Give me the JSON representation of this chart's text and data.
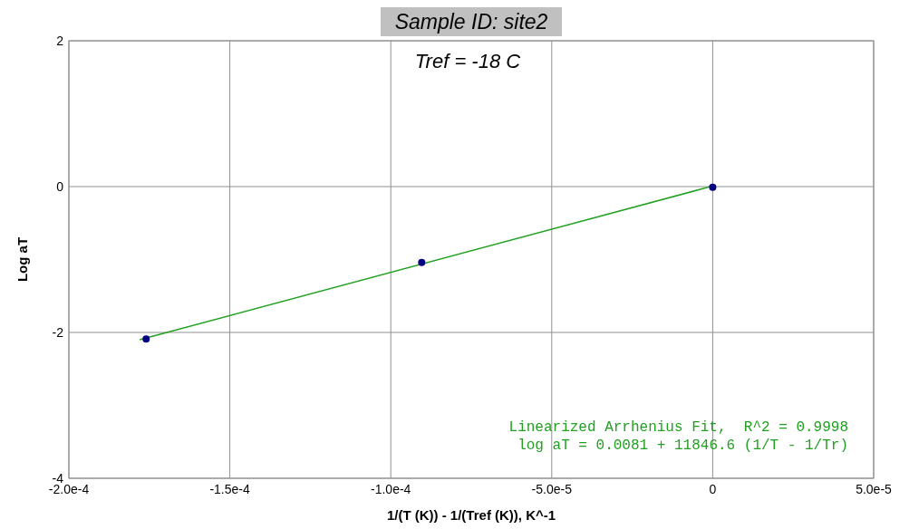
{
  "chart_data": {
    "type": "scatter",
    "title": "Sample ID: site2",
    "subtitle": "Tref = -18 C",
    "xlabel": "1/(T (K)) - 1/(Tref (K)), K^-1",
    "ylabel": "Log aT",
    "xlim": [
      -0.0002,
      5e-05
    ],
    "xticks": [
      {
        "value": -0.0002,
        "label": "-2.0e-4"
      },
      {
        "value": -0.00015,
        "label": "-1.5e-4"
      },
      {
        "value": -0.0001,
        "label": "-1.0e-4"
      },
      {
        "value": -5e-05,
        "label": "-5.0e-5"
      },
      0,
      {
        "value": 5e-05,
        "label": "5.0e-5"
      }
    ],
    "ylim": [
      -4,
      2
    ],
    "yticks": [
      -4,
      -2,
      0,
      2
    ],
    "grid": true,
    "series": [
      {
        "color": "#000080",
        "marker": "circle",
        "x": [
          -0.000176,
          -9.04e-05,
          0
        ],
        "values": [
          -2.09,
          -1.04,
          -0.01
        ]
      },
      {
        "type": "line",
        "marker": "none",
        "color": "#22a022",
        "x": [
          -0.000178,
          1e-06
        ],
        "values": [
          -2.1,
          0.02
        ]
      }
    ],
    "annotations": [
      "Linearized Arrhenius Fit,  R^2 = 0.9998",
      "log aT = 0.0081 + 11846.6 (1/T - 1/Tr)"
    ]
  }
}
